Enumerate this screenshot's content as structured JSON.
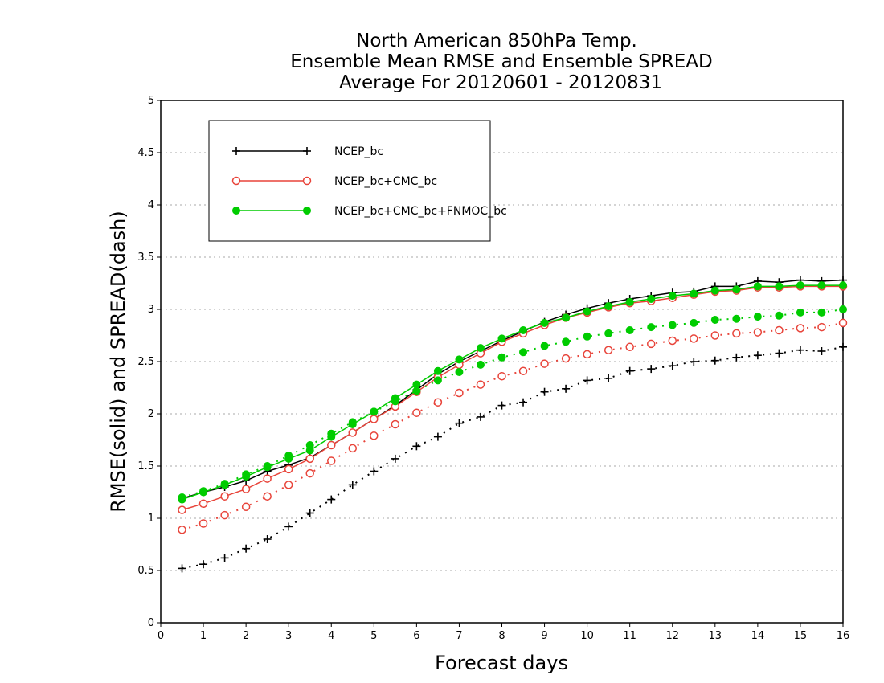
{
  "chart_data": {
    "type": "line",
    "title_lines": [
      "North American 850hPa Temp.",
      "Ensemble Mean RMSE and Ensemble SPREAD",
      "Average For 20120601 - 20120831"
    ],
    "xlabel": "Forecast days",
    "ylabel": "RMSE(solid) and SPREAD(dash)",
    "xlim": [
      0,
      16
    ],
    "ylim": [
      0,
      5
    ],
    "xticks": [
      "0",
      "1",
      "2",
      "3",
      "4",
      "5",
      "6",
      "7",
      "8",
      "9",
      "10",
      "11",
      "12",
      "13",
      "14",
      "15",
      "16"
    ],
    "yticks": [
      "0",
      "0.5",
      "1",
      "1.5",
      "2",
      "2.5",
      "3",
      "3.5",
      "4",
      "4.5",
      "5"
    ],
    "grid": "horizontal dotted",
    "legend_position": "top-left",
    "x": [
      0.5,
      1,
      1.5,
      2,
      2.5,
      3,
      3.5,
      4,
      4.5,
      5,
      5.5,
      6,
      6.5,
      7,
      7.5,
      8,
      8.5,
      9,
      9.5,
      10,
      10.5,
      11,
      11.5,
      12,
      12.5,
      13,
      13.5,
      14,
      14.5,
      15,
      15.5,
      16
    ],
    "series": [
      {
        "name": "NCEP_bc",
        "color": "#000000",
        "marker": "plus",
        "rmse": [
          1.19,
          1.25,
          1.3,
          1.36,
          1.45,
          1.51,
          1.58,
          1.7,
          1.82,
          1.95,
          2.08,
          2.23,
          2.38,
          2.5,
          2.6,
          2.7,
          2.79,
          2.88,
          2.95,
          3.01,
          3.06,
          3.1,
          3.13,
          3.16,
          3.17,
          3.22,
          3.22,
          3.27,
          3.26,
          3.28,
          3.27,
          3.28
        ],
        "spread": [
          0.52,
          0.56,
          0.62,
          0.71,
          0.8,
          0.92,
          1.05,
          1.18,
          1.32,
          1.45,
          1.57,
          1.69,
          1.78,
          1.91,
          1.97,
          2.08,
          2.11,
          2.21,
          2.24,
          2.32,
          2.34,
          2.41,
          2.43,
          2.46,
          2.5,
          2.51,
          2.54,
          2.56,
          2.58,
          2.61,
          2.6,
          2.64
        ]
      },
      {
        "name": "NCEP_bc+CMC_bc",
        "color": "#e8443a",
        "marker": "open-circle",
        "rmse": [
          1.08,
          1.14,
          1.21,
          1.28,
          1.38,
          1.47,
          1.57,
          1.7,
          1.82,
          1.95,
          2.07,
          2.21,
          2.35,
          2.47,
          2.58,
          2.69,
          2.77,
          2.85,
          2.92,
          2.97,
          3.02,
          3.06,
          3.08,
          3.11,
          3.14,
          3.17,
          3.18,
          3.21,
          3.21,
          3.22,
          3.22,
          3.22
        ],
        "spread": [
          0.89,
          0.95,
          1.03,
          1.11,
          1.21,
          1.32,
          1.43,
          1.55,
          1.67,
          1.79,
          1.9,
          2.01,
          2.11,
          2.2,
          2.28,
          2.36,
          2.41,
          2.48,
          2.53,
          2.57,
          2.61,
          2.64,
          2.67,
          2.7,
          2.72,
          2.75,
          2.77,
          2.78,
          2.8,
          2.82,
          2.83,
          2.87
        ]
      },
      {
        "name": "NCEP_bc+CMC_bc+FNMOC_bc",
        "color": "#00cc00",
        "marker": "filled-circle",
        "rmse": [
          1.18,
          1.25,
          1.32,
          1.4,
          1.49,
          1.57,
          1.65,
          1.78,
          1.9,
          2.02,
          2.15,
          2.28,
          2.41,
          2.52,
          2.63,
          2.72,
          2.8,
          2.87,
          2.92,
          2.98,
          3.03,
          3.07,
          3.1,
          3.13,
          3.15,
          3.18,
          3.19,
          3.22,
          3.22,
          3.23,
          3.23,
          3.23
        ],
        "spread": [
          1.2,
          1.26,
          1.33,
          1.42,
          1.5,
          1.6,
          1.7,
          1.81,
          1.92,
          2.02,
          2.12,
          2.22,
          2.32,
          2.4,
          2.47,
          2.54,
          2.59,
          2.65,
          2.69,
          2.74,
          2.77,
          2.8,
          2.83,
          2.85,
          2.87,
          2.9,
          2.91,
          2.93,
          2.94,
          2.97,
          2.97,
          3.0
        ]
      }
    ]
  }
}
